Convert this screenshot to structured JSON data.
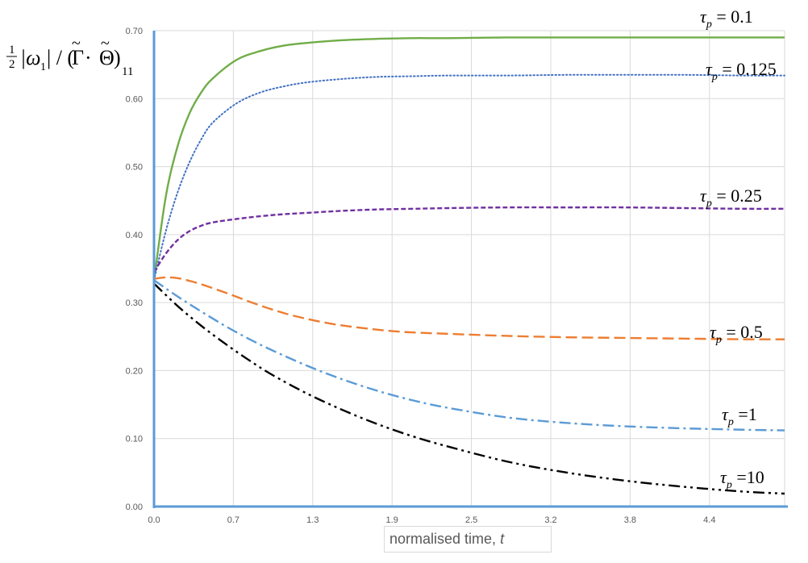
{
  "chart_data": {
    "type": "line",
    "ylabel": {
      "frac": "1/2",
      "frac_num": "1",
      "frac_den": "2",
      "omega": "|ω",
      "omega_sub": "1",
      "slash": "| / (",
      "gamma": "Γ",
      "dot": " · ",
      "theta": "Θ",
      "close": ")",
      "sub": "11"
    },
    "xlabel": {
      "text": "normalised time, ",
      "var": "t"
    },
    "xlim": [
      0,
      5.35
    ],
    "ylim": [
      0,
      0.7
    ],
    "x_ticks": [
      "0.0",
      "0.7",
      "1.3",
      "1.9",
      "2.5",
      "3.2",
      "3.8",
      "4.4"
    ],
    "y_ticks": [
      "0.00",
      "0.10",
      "0.20",
      "0.30",
      "0.40",
      "0.50",
      "0.60",
      "0.70"
    ],
    "grid": true,
    "series": [
      {
        "name": "τp = 0.1",
        "label_parts": [
          "τ",
          "p",
          " = 0.1"
        ],
        "color": "#70ad47",
        "dash": "solid",
        "x": [
          0,
          0.1,
          0.2,
          0.3,
          0.4,
          0.5,
          0.7,
          0.9,
          1.1,
          1.3,
          1.6,
          1.9,
          2.2,
          2.5,
          3.0,
          3.5,
          4.0,
          4.5,
          5.0,
          5.35
        ],
        "y": [
          0.333,
          0.456,
          0.53,
          0.578,
          0.609,
          0.63,
          0.657,
          0.67,
          0.678,
          0.682,
          0.686,
          0.688,
          0.689,
          0.689,
          0.69,
          0.69,
          0.69,
          0.69,
          0.69,
          0.69
        ]
      },
      {
        "name": "τp = 0.125",
        "label_parts": [
          "τ",
          "p",
          " = 0.125"
        ],
        "color": "#4472c4",
        "dash": "dotted",
        "x": [
          0,
          0.1,
          0.2,
          0.3,
          0.4,
          0.5,
          0.7,
          0.9,
          1.1,
          1.3,
          1.6,
          1.9,
          2.2,
          2.5,
          3.0,
          3.5,
          4.0,
          4.5,
          5.0,
          5.35
        ],
        "y": [
          0.333,
          0.405,
          0.462,
          0.506,
          0.54,
          0.565,
          0.593,
          0.609,
          0.618,
          0.624,
          0.629,
          0.632,
          0.633,
          0.634,
          0.634,
          0.635,
          0.635,
          0.635,
          0.634,
          0.634
        ]
      },
      {
        "name": "τp = 0.25",
        "label_parts": [
          "τ",
          "p",
          " = 0.25"
        ],
        "color": "#7030a0",
        "dash": "dashed",
        "x": [
          0,
          0.1,
          0.2,
          0.3,
          0.4,
          0.5,
          0.7,
          0.9,
          1.1,
          1.3,
          1.6,
          1.9,
          2.2,
          2.5,
          3.0,
          3.5,
          4.0,
          4.5,
          5.0,
          5.35
        ],
        "y": [
          0.345,
          0.372,
          0.392,
          0.405,
          0.413,
          0.418,
          0.423,
          0.427,
          0.43,
          0.432,
          0.435,
          0.437,
          0.438,
          0.439,
          0.44,
          0.44,
          0.44,
          0.439,
          0.438,
          0.438
        ]
      },
      {
        "name": "τp = 0.5",
        "label_parts": [
          "τ",
          "p",
          " = 0.5"
        ],
        "color": "#ed7d31",
        "dash": "longdash",
        "x": [
          0,
          0.1,
          0.2,
          0.3,
          0.4,
          0.6,
          0.8,
          1.0,
          1.2,
          1.5,
          1.8,
          2.1,
          2.5,
          3.0,
          3.5,
          4.0,
          4.5,
          5.0,
          5.35
        ],
        "y": [
          0.335,
          0.337,
          0.336,
          0.332,
          0.327,
          0.315,
          0.302,
          0.29,
          0.28,
          0.269,
          0.262,
          0.257,
          0.254,
          0.251,
          0.249,
          0.248,
          0.247,
          0.246,
          0.246
        ]
      },
      {
        "name": "τp =1",
        "label_parts": [
          "τ",
          "p",
          " =1"
        ],
        "color": "#5b9bd5",
        "dash": "dashdot",
        "x": [
          0,
          0.2,
          0.4,
          0.6,
          0.8,
          1.0,
          1.3,
          1.6,
          1.9,
          2.2,
          2.5,
          3.0,
          3.5,
          4.0,
          4.5,
          5.0,
          5.35
        ],
        "y": [
          0.333,
          0.309,
          0.287,
          0.266,
          0.247,
          0.23,
          0.207,
          0.187,
          0.17,
          0.156,
          0.145,
          0.131,
          0.123,
          0.118,
          0.115,
          0.113,
          0.112
        ]
      },
      {
        "name": "τp =10",
        "label_parts": [
          "τ",
          "p",
          " =10"
        ],
        "color": "#000000",
        "dash": "dashdotdot",
        "x": [
          0,
          0.2,
          0.4,
          0.6,
          0.8,
          1.0,
          1.3,
          1.6,
          1.9,
          2.2,
          2.5,
          3.0,
          3.5,
          4.0,
          4.5,
          5.0,
          5.35
        ],
        "y": [
          0.328,
          0.295,
          0.266,
          0.24,
          0.216,
          0.194,
          0.166,
          0.142,
          0.121,
          0.103,
          0.088,
          0.066,
          0.05,
          0.038,
          0.029,
          0.022,
          0.019
        ]
      }
    ]
  }
}
